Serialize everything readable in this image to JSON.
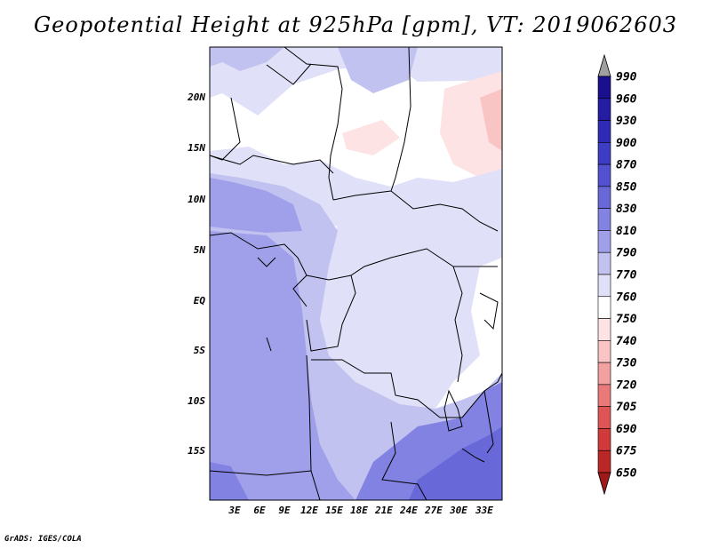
{
  "title": "Geopotential Height at 925hPa [gpm], VT: 2019062603",
  "credit": "GrADS: IGES/COLA",
  "map": {
    "lat_labels": [
      "20N",
      "15N",
      "10N",
      "5N",
      "EQ",
      "5S",
      "10S",
      "15S"
    ],
    "lon_labels": [
      "3E",
      "6E",
      "9E",
      "12E",
      "15E",
      "18E",
      "21E",
      "24E",
      "27E",
      "30E",
      "33E"
    ]
  },
  "colorbar": {
    "levels": [
      "990",
      "960",
      "930",
      "900",
      "870",
      "850",
      "830",
      "810",
      "790",
      "770",
      "760",
      "750",
      "740",
      "730",
      "720",
      "705",
      "690",
      "675",
      "650"
    ],
    "colors": {
      "over": "#a0a0a0",
      "990": "#1a0f8c",
      "960": "#241ca3",
      "930": "#2e2ab5",
      "900": "#3c3cc4",
      "870": "#5252d0",
      "850": "#6868d9",
      "830": "#8282e2",
      "810": "#a0a0ea",
      "790": "#c2c2f1",
      "770": "#e0e0f8",
      "760": "#ffffff",
      "750": "#fde3e3",
      "740": "#f9c4c4",
      "730": "#f3a0a0",
      "720": "#ea7a7a",
      "705": "#df5555",
      "690": "#d03a3a",
      "675": "#bb2727",
      "650": "#9e1a1a"
    }
  }
}
